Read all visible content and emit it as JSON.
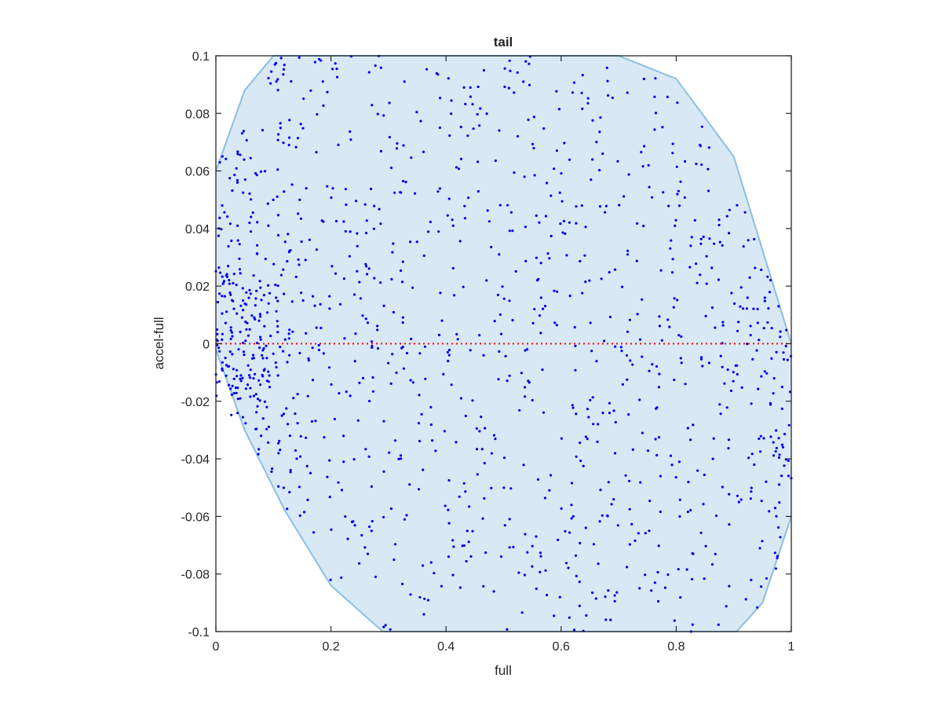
{
  "chart_data": {
    "type": "scatter",
    "title": "tail",
    "xlabel": "full",
    "ylabel": "accel-full",
    "xlim": [
      0,
      1
    ],
    "ylim": [
      -0.1,
      0.1
    ],
    "xticks": [
      0,
      0.2,
      0.4,
      0.6,
      0.8,
      1
    ],
    "xtick_labels": [
      "0",
      "0.2",
      "0.4",
      "0.6",
      "0.8",
      "1"
    ],
    "yticks": [
      -0.1,
      -0.08,
      -0.06,
      -0.04,
      -0.02,
      0,
      0.02,
      0.04,
      0.06,
      0.08,
      0.1
    ],
    "ytick_labels": [
      "-0.1",
      "-0.08",
      "-0.06",
      "-0.04",
      "-0.02",
      "0",
      "0.02",
      "0.04",
      "0.06",
      "0.08",
      "0.1"
    ],
    "grid": false,
    "legend": "none",
    "colors": {
      "points": "#0000ee",
      "region_fill": "#d8e8f5",
      "region_edge": "#8cbfe0",
      "zero_line": "#ff0000",
      "axes": "#262626"
    },
    "shaded_region": {
      "description_kind": "ellipse-like boundary",
      "top_edge": [
        [
          0.0,
          0.06
        ],
        [
          0.05,
          0.088
        ],
        [
          0.1,
          0.1
        ],
        [
          0.7,
          0.1
        ],
        [
          0.8,
          0.092
        ],
        [
          0.9,
          0.065
        ],
        [
          1.0,
          0.0
        ]
      ],
      "bottom_edge": [
        [
          0.0,
          -0.002
        ],
        [
          0.05,
          -0.03
        ],
        [
          0.12,
          -0.058
        ],
        [
          0.2,
          -0.084
        ],
        [
          0.29,
          -0.1
        ],
        [
          0.905,
          -0.1
        ],
        [
          0.95,
          -0.09
        ],
        [
          1.0,
          -0.06
        ]
      ]
    },
    "zero_line": {
      "y": 0,
      "style": "dotted"
    },
    "point_count": 1200,
    "points_seed": 7
  }
}
